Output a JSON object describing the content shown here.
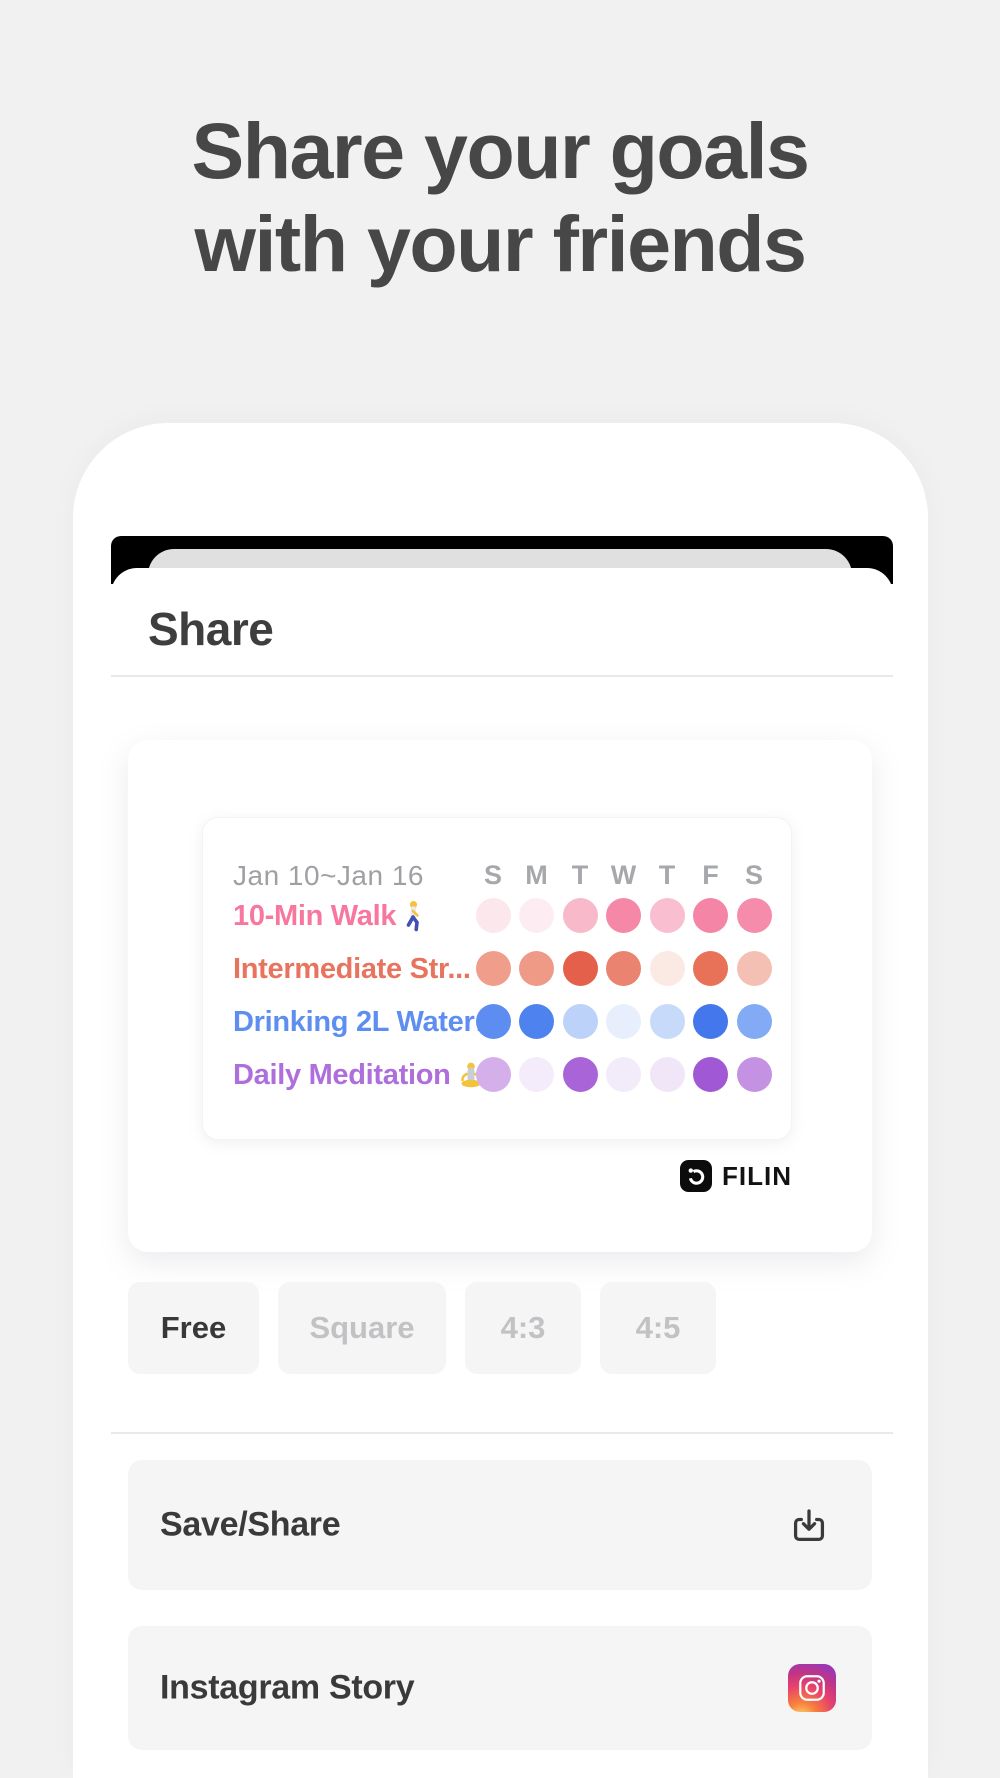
{
  "hero": {
    "title_line1": "Share your goals",
    "title_line2": "with your friends"
  },
  "sheet": {
    "title": "Share"
  },
  "preview": {
    "date_range": "Jan 10~Jan 16",
    "day_headers": [
      "S",
      "M",
      "T",
      "W",
      "T",
      "F",
      "S"
    ],
    "habits": [
      {
        "label": "10-Min Walk",
        "emoji": "🚶",
        "color": "#F7779E",
        "dots": [
          "#FCE7ED",
          "#FDEDF2",
          "#F8B9CB",
          "#F587A7",
          "#F9BECF",
          "#F585A6",
          "#F68CAB"
        ]
      },
      {
        "label": "Intermediate Str...",
        "emoji": "",
        "color": "#E8735F",
        "dots": [
          "#F09D8B",
          "#EF9A87",
          "#E5604B",
          "#EA8370",
          "#FBE9E4",
          "#E87258",
          "#F5C0B4"
        ]
      },
      {
        "label": "Drinking 2L Water…",
        "emoji": "",
        "color": "#5E8FF0",
        "dots": [
          "#5D8DF1",
          "#4E83EF",
          "#BCD2F8",
          "#E8EFFC",
          "#C7DAF9",
          "#4377EB",
          "#83AAF4"
        ]
      },
      {
        "label": "Daily Meditation",
        "emoji": "🧘",
        "color": "#AE6FDC",
        "dots": [
          "#D4AFE9",
          "#F4ECFA",
          "#A965D7",
          "#F2EBF9",
          "#F0E6F8",
          "#A058D4",
          "#C592E3"
        ]
      }
    ],
    "watermark_brand": "FILIN",
    "watermark_icon": "timer-app-icon"
  },
  "aspect_options": [
    {
      "label": "Free",
      "selected": true
    },
    {
      "label": "Square",
      "selected": false
    },
    {
      "label": "4:3",
      "selected": false
    },
    {
      "label": "4:5",
      "selected": false
    }
  ],
  "actions": [
    {
      "label": "Save/Share",
      "icon": "download-icon"
    },
    {
      "label": "Instagram Story",
      "icon": "instagram-camera-icon"
    }
  ],
  "colors": {
    "page_background": "#F1F1F2",
    "sheet_background": "#FFFFFF",
    "status_bar": "#000000",
    "dimmed_app_bar": "#E0E0E1",
    "title_text": "#474747",
    "muted_text": "#9FA0A4",
    "chip_background": "#F5F5F6",
    "selected_chip_text": "#383838",
    "unselected_chip_text": "#C2C2C5"
  }
}
